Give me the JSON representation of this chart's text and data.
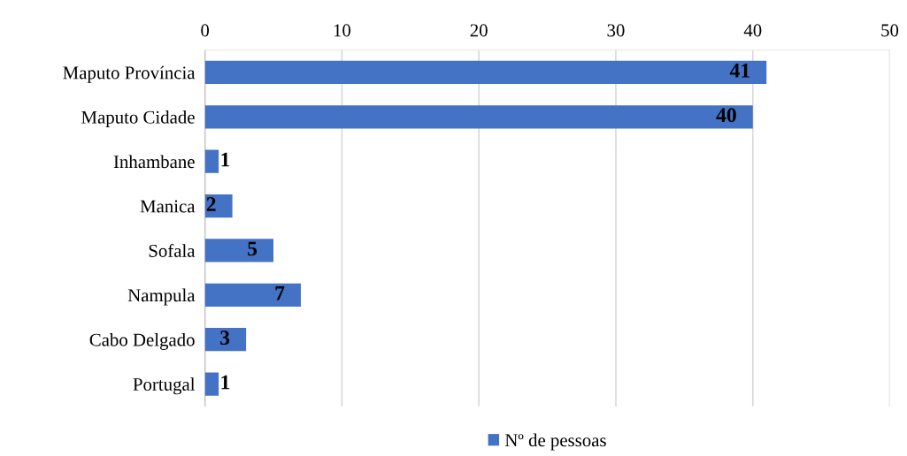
{
  "chart_data": {
    "type": "bar",
    "orientation": "horizontal",
    "categories": [
      "Maputo Província",
      "Maputo Cidade",
      "Inhambane",
      "Manica",
      "Sofala",
      "Nampula",
      "Cabo Delgado",
      "Portugal"
    ],
    "series": [
      {
        "name": "Nº de pessoas",
        "color": "#4472c4",
        "values": [
          41,
          40,
          1,
          2,
          5,
          7,
          3,
          1
        ]
      }
    ],
    "xlim": [
      0,
      50
    ],
    "xticks": [
      0,
      10,
      20,
      30,
      40,
      50
    ],
    "grid": "x",
    "legend": "bottom",
    "data_labels": true
  }
}
